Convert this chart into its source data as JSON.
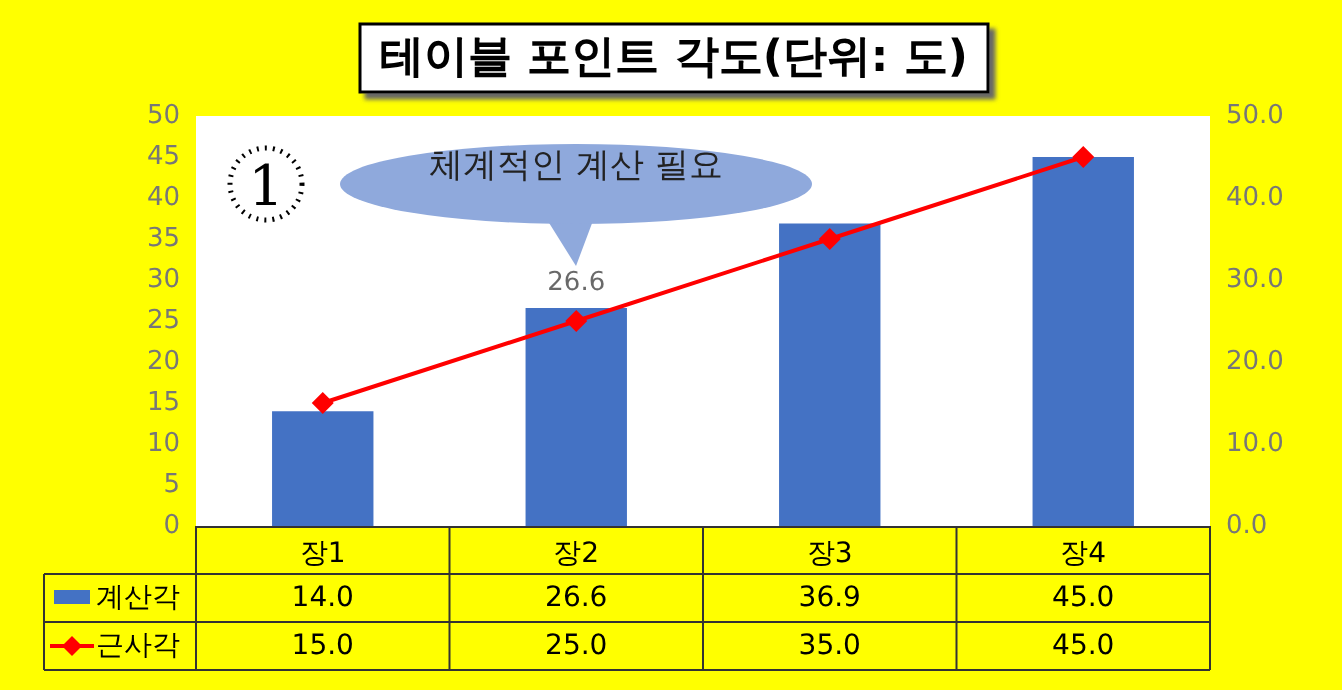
{
  "chart_data": {
    "type": "bar",
    "title": "테이블 포인트 각도(단위: 도)",
    "categories": [
      "장1",
      "장2",
      "장3",
      "장4"
    ],
    "series": [
      {
        "name": "계산각",
        "color": "#4472c4",
        "values": [
          14.0,
          26.6,
          36.9,
          45.0
        ],
        "value_labels": [
          "14.0",
          "26.6",
          "36.9",
          "45.0"
        ]
      },
      {
        "name": "근사각",
        "type": "line",
        "axis": "y2",
        "color": "#ff0000",
        "values": [
          15.0,
          25.0,
          35.0,
          45.0
        ],
        "value_labels": [
          "15.0",
          "25.0",
          "35.0",
          "45.0"
        ],
        "marker": "diamond"
      }
    ],
    "ylim": [
      0,
      50
    ],
    "yticks": [
      0,
      5,
      10,
      15,
      20,
      25,
      30,
      35,
      40,
      45,
      50
    ],
    "y2lim": [
      0,
      50
    ],
    "y2ticks": [
      {
        "value": 0,
        "label": "0.0"
      },
      {
        "value": 10,
        "label": "10.0"
      },
      {
        "value": 20,
        "label": "20.0"
      },
      {
        "value": 30,
        "label": "30.0"
      },
      {
        "value": 40,
        "label": "40.0"
      },
      {
        "value": 50,
        "label": "50.0"
      }
    ],
    "grid": false,
    "legend": "bottom left",
    "annotations": [
      {
        "text": "26.6",
        "x": "장2",
        "y": 26.6
      },
      "1",
      "체계적인 계산 필요"
    ]
  }
}
